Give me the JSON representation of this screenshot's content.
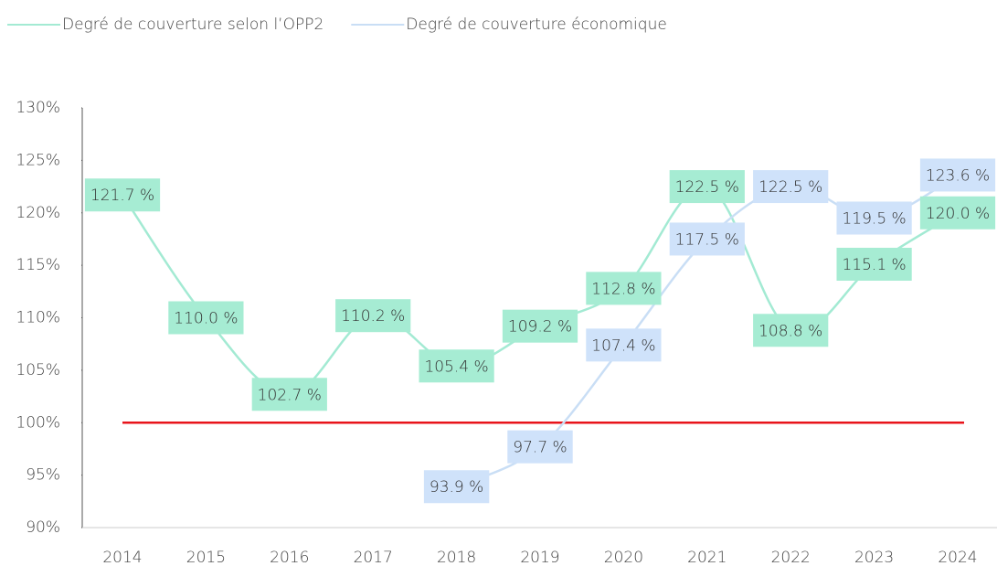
{
  "chart_data": {
    "type": "line",
    "categories": [
      "2014",
      "2015",
      "2016",
      "2017",
      "2018",
      "2019",
      "2020",
      "2021",
      "2022",
      "2023",
      "2024"
    ],
    "series": [
      {
        "name": "Degré de couverture selon l’OPP2",
        "color": "#a3ead3",
        "label_color": "#a6ecd3",
        "values": [
          121.7,
          110.0,
          102.7,
          110.2,
          105.4,
          109.2,
          112.8,
          122.5,
          108.8,
          115.1,
          120.0
        ],
        "value_labels": [
          "121.7 %",
          "110.0 %",
          "102.7 %",
          "110.2 %",
          "105.4 %",
          "109.2 %",
          "112.8 %",
          "122.5 %",
          "108.8 %",
          "115.1 %",
          "120.0 %"
        ]
      },
      {
        "name": "Degré de couverture économique",
        "color": "#c9def5",
        "label_color": "#cfe2fa",
        "values": [
          null,
          null,
          null,
          null,
          93.9,
          97.7,
          107.4,
          117.5,
          122.5,
          119.5,
          123.6
        ],
        "value_labels": [
          null,
          null,
          null,
          null,
          "93.9 %",
          "97.7 %",
          "107.4 %",
          "117.5 %",
          "122.5 %",
          "119.5 %",
          "123.6 %"
        ]
      }
    ],
    "ylim": [
      90,
      130
    ],
    "yticks": [
      {
        "value": 90,
        "label": "90%"
      },
      {
        "value": 95,
        "label": "95%"
      },
      {
        "value": 100,
        "label": "100%"
      },
      {
        "value": 105,
        "label": "105%"
      },
      {
        "value": 110,
        "label": "110%"
      },
      {
        "value": 115,
        "label": "115%"
      },
      {
        "value": 120,
        "label": "120%"
      },
      {
        "value": 125,
        "label": "125%"
      },
      {
        "value": 130,
        "label": "130%"
      }
    ],
    "reference_line": {
      "value": 100,
      "color": "#e8141b"
    },
    "legend": "top-left"
  }
}
